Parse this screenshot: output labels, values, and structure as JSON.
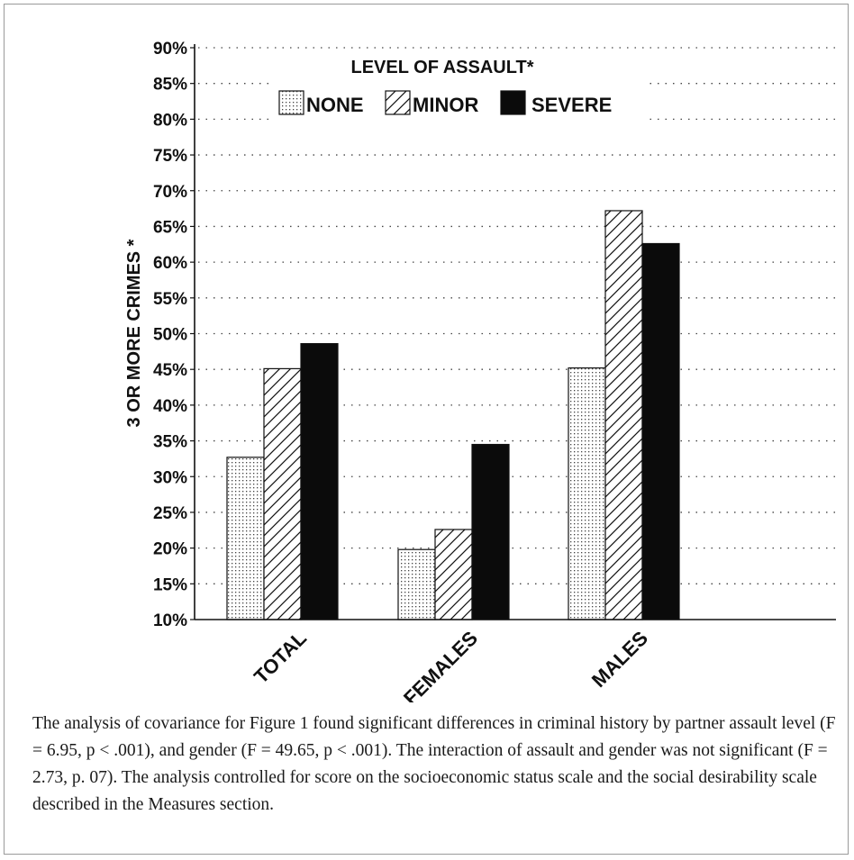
{
  "chart_data": {
    "type": "bar",
    "title": "",
    "ylabel": "3 OR MORE CRIMES *",
    "xlabel": "",
    "ylim": [
      10,
      90
    ],
    "yticks": [
      "10%",
      "15%",
      "20%",
      "25%",
      "30%",
      "35%",
      "40%",
      "45%",
      "50%",
      "55%",
      "60%",
      "65%",
      "70%",
      "75%",
      "80%",
      "85%",
      "90%"
    ],
    "grid": "dotted horizontal",
    "categories": [
      "TOTAL",
      "FEMALES",
      "MALES"
    ],
    "legend": {
      "title": "LEVEL OF ASSAULT*",
      "placement": "top",
      "items": [
        {
          "label": "NONE",
          "pattern": "dotted"
        },
        {
          "label": "MINOR",
          "pattern": "hatched"
        },
        {
          "label": "SEVERE",
          "pattern": "solid"
        }
      ]
    },
    "series": [
      {
        "name": "NONE",
        "values": [
          32.7,
          19.8,
          45.2
        ]
      },
      {
        "name": "MINOR",
        "values": [
          45.1,
          22.6,
          67.2
        ]
      },
      {
        "name": "SEVERE",
        "values": [
          48.6,
          34.5,
          62.6
        ]
      }
    ]
  },
  "caption": "The analysis of covariance for Figure 1 found significant differences in criminal history by partner assault level (F = 6.95, p < .001), and gender (F = 49.65, p < .001). The interaction of assault and gender was not significant (F = 2.73, p. 07). The analysis controlled for score on the socioeconomic status scale and the social desirability scale described in the Measures section."
}
